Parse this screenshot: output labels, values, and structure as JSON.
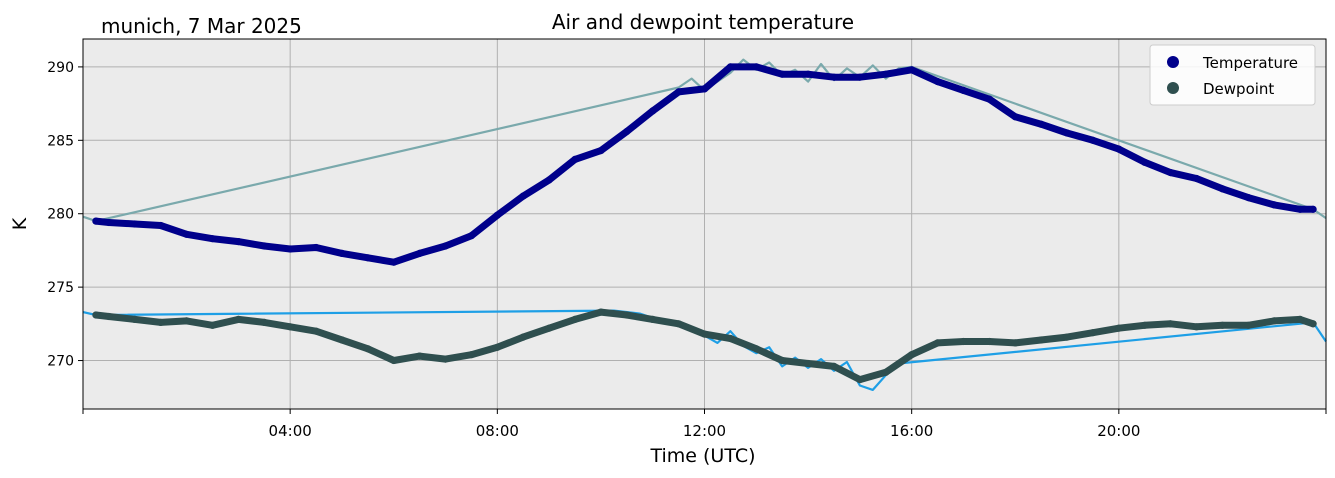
{
  "chart_data": {
    "type": "line",
    "title": "Air and dewpoint temperature",
    "subtitle": "munich, 7 Mar 2025",
    "xlabel": "Time (UTC)",
    "ylabel": "K",
    "x_unit": "hours UTC",
    "xlim": [
      0,
      24
    ],
    "ylim": [
      266.7,
      291.9
    ],
    "xticks": [
      {
        "value": 0,
        "label": ""
      },
      {
        "value": 4,
        "label": "04:00"
      },
      {
        "value": 8,
        "label": "08:00"
      },
      {
        "value": 12,
        "label": "12:00"
      },
      {
        "value": 16,
        "label": "16:00"
      },
      {
        "value": 20,
        "label": "20:00"
      },
      {
        "value": 24,
        "label": ""
      }
    ],
    "yticks": [
      270,
      275,
      280,
      285,
      290
    ],
    "grid": true,
    "background": "#ebebeb",
    "legend": {
      "position": "top-right"
    },
    "series": [
      {
        "name": "Temperature",
        "color": "#00008b",
        "raw_color": "#7aa9ac",
        "smoothed": {
          "x": [
            0.25,
            0.5,
            1.0,
            1.5,
            2.0,
            2.5,
            3.0,
            3.5,
            4.0,
            4.5,
            5.0,
            5.5,
            6.0,
            6.5,
            7.0,
            7.5,
            8.0,
            8.5,
            9.0,
            9.5,
            10.0,
            10.5,
            11.0,
            11.5,
            12.0,
            12.5,
            13.0,
            13.5,
            14.0,
            14.5,
            15.0,
            15.5,
            16.0,
            16.5,
            17.0,
            17.5,
            18.0,
            18.5,
            19.0,
            19.5,
            20.0,
            20.5,
            21.0,
            21.5,
            22.0,
            22.5,
            23.0,
            23.5,
            23.75
          ],
          "y": [
            279.5,
            279.4,
            279.3,
            279.2,
            278.6,
            278.3,
            278.1,
            277.8,
            277.6,
            277.7,
            277.3,
            277.0,
            276.7,
            277.3,
            277.8,
            278.5,
            279.9,
            281.2,
            282.3,
            283.7,
            284.3,
            285.6,
            287.0,
            288.3,
            288.5,
            290.0,
            290.0,
            289.5,
            289.5,
            289.3,
            289.3,
            289.5,
            289.8,
            289.0,
            288.4,
            287.8,
            286.6,
            286.1,
            285.5,
            285.0,
            284.4,
            283.5,
            282.8,
            282.4,
            281.7,
            281.1,
            280.6,
            280.3,
            280.3
          ]
        },
        "raw": {
          "x": [
            0.0,
            0.25,
            11.5,
            11.75,
            12.0,
            12.25,
            12.5,
            12.75,
            13.0,
            13.25,
            13.5,
            13.75,
            14.0,
            14.25,
            14.5,
            14.75,
            15.0,
            15.25,
            15.5,
            15.75,
            16.0,
            23.75,
            24.0
          ],
          "y": [
            279.8,
            279.5,
            288.6,
            289.2,
            288.4,
            289.0,
            289.6,
            290.5,
            289.8,
            290.3,
            289.4,
            289.8,
            289.0,
            290.2,
            289.1,
            289.9,
            289.3,
            290.1,
            289.2,
            289.9,
            290.0,
            280.3,
            279.7
          ]
        }
      },
      {
        "name": "Dewpoint",
        "color": "#2f4f4f",
        "raw_color": "#1e9fe6",
        "smoothed": {
          "x": [
            0.25,
            0.5,
            1.0,
            1.5,
            2.0,
            2.5,
            3.0,
            3.5,
            4.0,
            4.5,
            5.0,
            5.5,
            6.0,
            6.5,
            7.0,
            7.5,
            8.0,
            8.5,
            9.0,
            9.5,
            10.0,
            10.5,
            11.0,
            11.5,
            12.0,
            12.5,
            13.0,
            13.5,
            14.0,
            14.5,
            15.0,
            15.5,
            16.0,
            16.5,
            17.0,
            17.5,
            18.0,
            18.5,
            19.0,
            19.5,
            20.0,
            20.5,
            21.0,
            21.5,
            22.0,
            22.5,
            23.0,
            23.5,
            23.75
          ],
          "y": [
            273.1,
            273.0,
            272.8,
            272.6,
            272.7,
            272.4,
            272.8,
            272.6,
            272.3,
            272.0,
            271.4,
            270.8,
            270.0,
            270.3,
            270.1,
            270.4,
            270.9,
            271.6,
            272.2,
            272.8,
            273.3,
            273.1,
            272.8,
            272.5,
            271.8,
            271.5,
            270.8,
            270.0,
            269.8,
            269.6,
            268.7,
            269.2,
            270.4,
            271.2,
            271.3,
            271.3,
            271.2,
            271.4,
            271.6,
            271.9,
            272.2,
            272.4,
            272.5,
            272.3,
            272.4,
            272.4,
            272.7,
            272.8,
            272.5
          ]
        },
        "raw": {
          "x": [
            0.0,
            0.25,
            10.25,
            10.75,
            11.25,
            11.75,
            12.25,
            12.5,
            12.75,
            13.0,
            13.25,
            13.5,
            13.75,
            14.0,
            14.25,
            14.5,
            14.75,
            15.0,
            15.25,
            15.5,
            15.75,
            23.75,
            24.0
          ],
          "y": [
            273.3,
            273.1,
            273.4,
            273.2,
            272.6,
            272.2,
            271.2,
            272.0,
            271.0,
            270.5,
            270.9,
            269.6,
            270.2,
            269.5,
            270.1,
            269.3,
            269.9,
            268.3,
            268.0,
            269.0,
            269.8,
            272.6,
            271.3
          ]
        }
      }
    ]
  }
}
